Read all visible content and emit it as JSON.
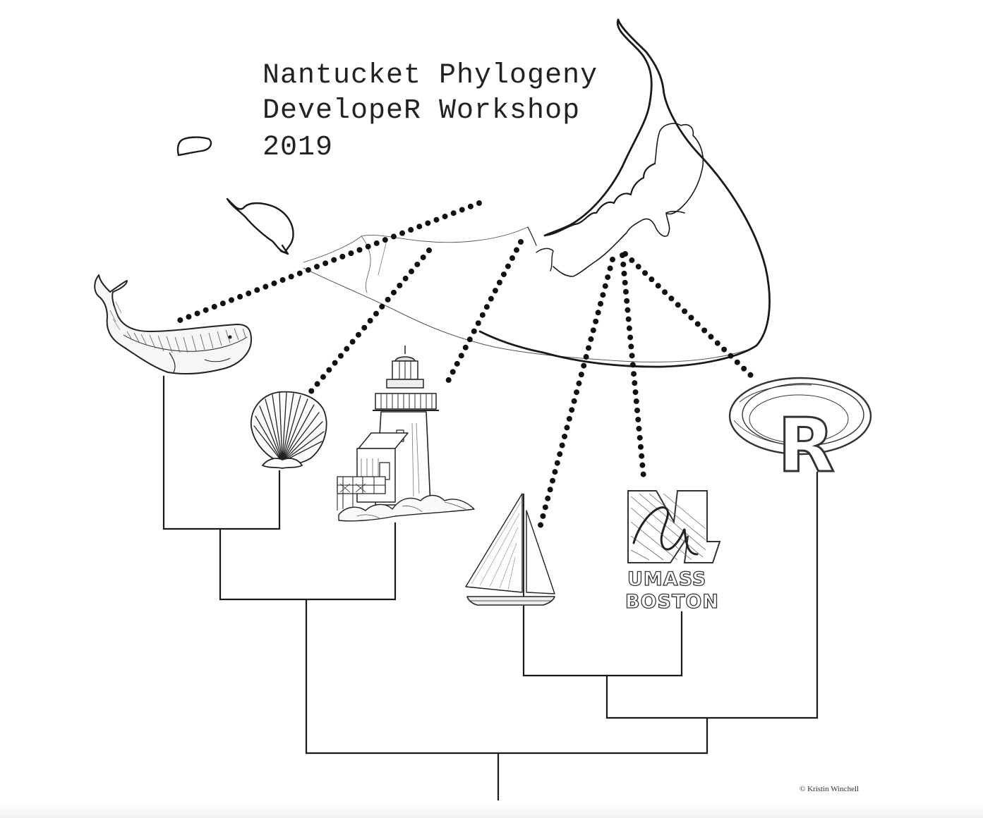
{
  "title": {
    "line1": "Nantucket Phylogeny",
    "line2": "DevelopeR Workshop",
    "line3": "2019"
  },
  "umass": {
    "line1": "UMASS",
    "line2": "BOSTON"
  },
  "r_logo": {
    "letter": "R"
  },
  "credit": "© Kristin Winchell",
  "tips": [
    "whale-icon",
    "scallop-shell-icon",
    "lighthouse-icon",
    "sailboat-icon",
    "umass-boston-logo",
    "r-logo"
  ],
  "colors": {
    "ink": "#1a1a1a",
    "background": "#ffffff"
  }
}
